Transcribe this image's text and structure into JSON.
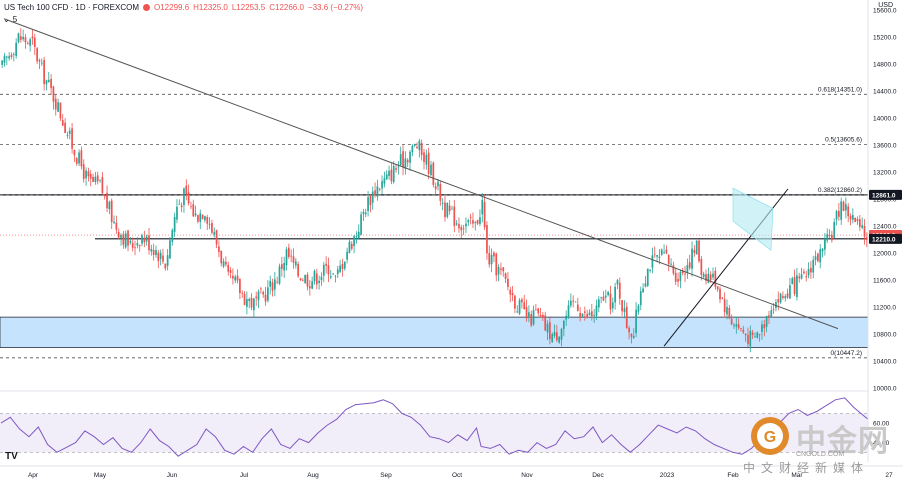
{
  "header": {
    "symbol": "US Tech 100 CFD · 1D · FOREXCOM",
    "open": "O12299.6",
    "high": "H12325.0",
    "low": "L12253.5",
    "close": "C12266.0",
    "change": "−33.6 (−0.27%)",
    "indicator_count": "5",
    "currency": "USD"
  },
  "price_axis": {
    "ticks": [
      "15600.0",
      "15200.0",
      "14800.0",
      "14400.0",
      "14000.0",
      "13600.0",
      "13200.0",
      "12800.0",
      "12400.0",
      "12000.0",
      "11600.0",
      "11200.0",
      "10800.0",
      "10400.0",
      "10000.0"
    ],
    "tags": [
      {
        "label": "12861.0",
        "value": 12861.0,
        "color": "#131722"
      },
      {
        "label": "12266.0",
        "value": 12266.0,
        "color": "#ef5350"
      },
      {
        "label": "12210.0",
        "value": 12210.0,
        "color": "#131722"
      }
    ]
  },
  "rsi_axis": {
    "ticks": [
      "60.00",
      "40.00"
    ]
  },
  "time_axis": {
    "labels": [
      "Apr",
      "May",
      "Jun",
      "Jul",
      "Aug",
      "Sep",
      "Oct",
      "Nov",
      "Dec",
      "2023",
      "Feb",
      "Mar",
      "27"
    ]
  },
  "fib_levels": [
    {
      "label": "0.618(14351.0)",
      "value": 14351.0
    },
    {
      "label": "0.5(13605.6)",
      "value": 13605.6
    },
    {
      "label": "0.382(12860.2)",
      "value": 12860.2
    },
    {
      "label": "0(10447.2)",
      "value": 10447.2
    }
  ],
  "watermark": {
    "brand": "中金网",
    "url": "CNGOLD.COM",
    "subtitle": "中文财经新媒体"
  },
  "tv_logo": "TV",
  "colors": {
    "up": "#26a69a",
    "down": "#ef5350",
    "rsi": "#7e57c2",
    "zone": "#bbdefb",
    "flag": "#b2ebf2"
  },
  "chart_data": {
    "type": "candlestick",
    "title": "US Tech 100 CFD · 1D · FOREXCOM",
    "ylim": [
      10000,
      15600
    ],
    "support_zone": [
      10600,
      11050
    ],
    "horizontal_lines": [
      12861.0,
      12210.0
    ],
    "close_path": [
      [
        0,
        14750
      ],
      [
        7,
        15200
      ],
      [
        13,
        15100
      ],
      [
        17,
        14700
      ],
      [
        23,
        14250
      ],
      [
        30,
        13600
      ],
      [
        37,
        13050
      ],
      [
        42,
        13000
      ],
      [
        48,
        12450
      ],
      [
        55,
        12100
      ],
      [
        60,
        12250
      ],
      [
        66,
        12050
      ],
      [
        70,
        11850
      ],
      [
        75,
        12700
      ],
      [
        78,
        12850
      ],
      [
        83,
        12550
      ],
      [
        87,
        12650
      ],
      [
        93,
        12050
      ],
      [
        97,
        11600
      ],
      [
        100,
        11550
      ],
      [
        104,
        11350
      ],
      [
        108,
        11250
      ],
      [
        113,
        11400
      ],
      [
        118,
        11650
      ],
      [
        122,
        12000
      ],
      [
        127,
        11700
      ],
      [
        132,
        11600
      ],
      [
        137,
        11700
      ],
      [
        140,
        11800
      ],
      [
        143,
        11600
      ],
      [
        148,
        12050
      ],
      [
        152,
        12300
      ],
      [
        156,
        12700
      ],
      [
        160,
        12950
      ],
      [
        165,
        13100
      ],
      [
        170,
        13300
      ],
      [
        175,
        13500
      ],
      [
        178,
        13600
      ],
      [
        183,
        13300
      ],
      [
        187,
        12950
      ],
      [
        190,
        12650
      ],
      [
        196,
        12450
      ],
      [
        203,
        12400
      ],
      [
        206,
        12750
      ],
      [
        208,
        11950
      ],
      [
        214,
        11700
      ],
      [
        220,
        11300
      ],
      [
        226,
        11000
      ],
      [
        229,
        11100
      ],
      [
        233,
        10900
      ],
      [
        237,
        10750
      ],
      [
        241,
        11000
      ],
      [
        246,
        11300
      ],
      [
        250,
        11050
      ],
      [
        254,
        11100
      ],
      [
        258,
        11350
      ],
      [
        262,
        11250
      ],
      [
        264,
        11550
      ],
      [
        268,
        10950
      ],
      [
        271,
        10800
      ],
      [
        274,
        11500
      ],
      [
        278,
        11850
      ],
      [
        284,
        11950
      ],
      [
        290,
        11650
      ],
      [
        295,
        11900
      ],
      [
        298,
        12100
      ],
      [
        300,
        11750
      ],
      [
        306,
        11600
      ],
      [
        312,
        11050
      ],
      [
        316,
        10900
      ],
      [
        319,
        10800
      ],
      [
        322,
        10700
      ],
      [
        326,
        10900
      ],
      [
        330,
        11250
      ],
      [
        335,
        11350
      ],
      [
        339,
        11500
      ],
      [
        344,
        11600
      ],
      [
        348,
        11900
      ],
      [
        352,
        12000
      ],
      [
        356,
        12300
      ],
      [
        360,
        12750
      ],
      [
        363,
        12600
      ],
      [
        366,
        12450
      ],
      [
        369,
        12290
      ],
      [
        371,
        12266
      ]
    ],
    "rsi_path": [
      [
        0,
        60
      ],
      [
        4,
        66
      ],
      [
        8,
        54
      ],
      [
        12,
        46
      ],
      [
        16,
        56
      ],
      [
        20,
        38
      ],
      [
        24,
        30
      ],
      [
        28,
        35
      ],
      [
        32,
        40
      ],
      [
        36,
        52
      ],
      [
        40,
        46
      ],
      [
        44,
        38
      ],
      [
        48,
        45
      ],
      [
        52,
        34
      ],
      [
        56,
        30
      ],
      [
        60,
        40
      ],
      [
        64,
        54
      ],
      [
        68,
        42
      ],
      [
        72,
        36
      ],
      [
        76,
        26
      ],
      [
        80,
        32
      ],
      [
        84,
        38
      ],
      [
        88,
        54
      ],
      [
        92,
        46
      ],
      [
        96,
        32
      ],
      [
        100,
        28
      ],
      [
        104,
        36
      ],
      [
        108,
        30
      ],
      [
        112,
        44
      ],
      [
        116,
        54
      ],
      [
        120,
        38
      ],
      [
        124,
        34
      ],
      [
        128,
        44
      ],
      [
        132,
        40
      ],
      [
        136,
        50
      ],
      [
        140,
        58
      ],
      [
        144,
        64
      ],
      [
        148,
        74
      ],
      [
        152,
        79
      ],
      [
        156,
        80
      ],
      [
        160,
        81
      ],
      [
        164,
        84
      ],
      [
        168,
        80
      ],
      [
        172,
        70
      ],
      [
        176,
        66
      ],
      [
        180,
        58
      ],
      [
        184,
        46
      ],
      [
        188,
        44
      ],
      [
        192,
        40
      ],
      [
        196,
        48
      ],
      [
        200,
        42
      ],
      [
        204,
        55
      ],
      [
        206,
        36
      ],
      [
        210,
        34
      ],
      [
        214,
        38
      ],
      [
        218,
        28
      ],
      [
        222,
        32
      ],
      [
        226,
        30
      ],
      [
        230,
        40
      ],
      [
        234,
        34
      ],
      [
        238,
        38
      ],
      [
        242,
        52
      ],
      [
        246,
        44
      ],
      [
        250,
        46
      ],
      [
        254,
        56
      ],
      [
        258,
        40
      ],
      [
        262,
        48
      ],
      [
        266,
        38
      ],
      [
        270,
        30
      ],
      [
        274,
        38
      ],
      [
        278,
        48
      ],
      [
        282,
        58
      ],
      [
        286,
        54
      ],
      [
        290,
        50
      ],
      [
        294,
        56
      ],
      [
        298,
        52
      ],
      [
        302,
        44
      ],
      [
        306,
        38
      ],
      [
        310,
        34
      ],
      [
        314,
        30
      ],
      [
        318,
        28
      ],
      [
        322,
        34
      ],
      [
        326,
        44
      ],
      [
        330,
        50
      ],
      [
        334,
        60
      ],
      [
        338,
        70
      ],
      [
        342,
        74
      ],
      [
        346,
        68
      ],
      [
        350,
        72
      ],
      [
        354,
        78
      ],
      [
        358,
        84
      ],
      [
        362,
        86
      ],
      [
        366,
        76
      ],
      [
        370,
        68
      ],
      [
        372,
        64
      ]
    ],
    "rsi_ylim": [
      20,
      90
    ],
    "rsi_levels": [
      70,
      30
    ]
  }
}
